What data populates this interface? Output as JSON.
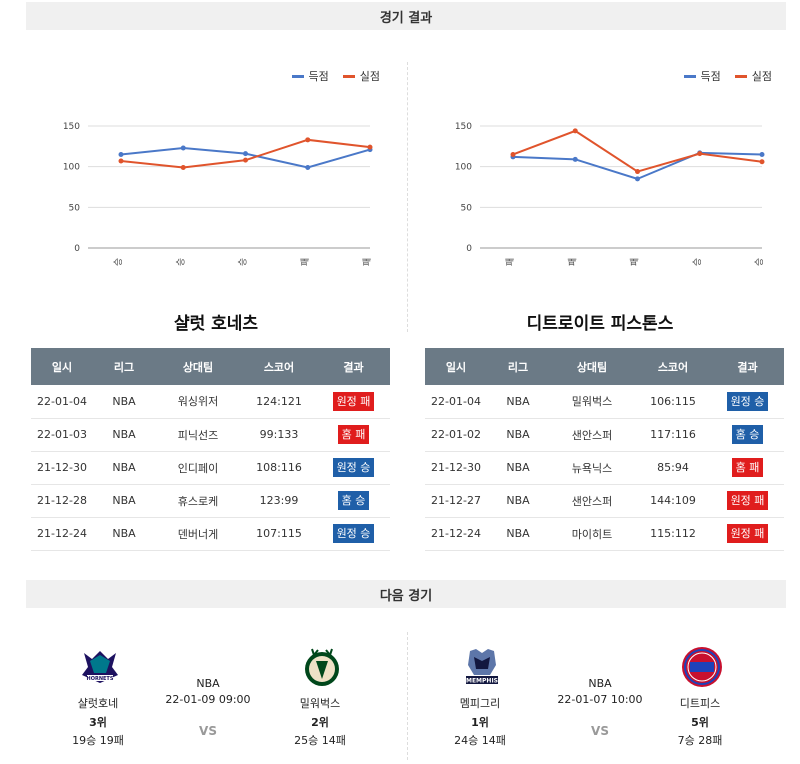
{
  "section_results": "경기 결과",
  "section_next": "다음 경기",
  "colors": {
    "scored": "#4a78c8",
    "conceded": "#e0542c",
    "win": "#1f5fa8",
    "loss": "#e01d1d"
  },
  "legend": {
    "scored": "득점",
    "conceded": "실점"
  },
  "table_headers": [
    "일시",
    "리그",
    "상대팀",
    "스코어",
    "결과"
  ],
  "teams": [
    {
      "name": "샬럿 호네츠",
      "results": [
        {
          "date": "22-01-04",
          "league": "NBA",
          "opponent": "워싱위저",
          "score": "124:121",
          "result": "원정 패",
          "win": false
        },
        {
          "date": "22-01-03",
          "league": "NBA",
          "opponent": "피닉선즈",
          "score": "99:133",
          "result": "홈 패",
          "win": false
        },
        {
          "date": "21-12-30",
          "league": "NBA",
          "opponent": "인디페이",
          "score": "108:116",
          "result": "원정 승",
          "win": true
        },
        {
          "date": "21-12-28",
          "league": "NBA",
          "opponent": "휴스로케",
          "score": "123:99",
          "result": "홈 승",
          "win": true
        },
        {
          "date": "21-12-24",
          "league": "NBA",
          "opponent": "덴버너게",
          "score": "107:115",
          "result": "원정 승",
          "win": true
        }
      ]
    },
    {
      "name": "디트로이트 피스톤스",
      "results": [
        {
          "date": "22-01-04",
          "league": "NBA",
          "opponent": "밀워벅스",
          "score": "106:115",
          "result": "원정 승",
          "win": true
        },
        {
          "date": "22-01-02",
          "league": "NBA",
          "opponent": "샌안스퍼",
          "score": "117:116",
          "result": "홈 승",
          "win": true
        },
        {
          "date": "21-12-30",
          "league": "NBA",
          "opponent": "뉴욕닉스",
          "score": "85:94",
          "result": "홈 패",
          "win": false
        },
        {
          "date": "21-12-27",
          "league": "NBA",
          "opponent": "샌안스퍼",
          "score": "144:109",
          "result": "원정 패",
          "win": false
        },
        {
          "date": "21-12-24",
          "league": "NBA",
          "opponent": "마이히트",
          "score": "115:112",
          "result": "원정 패",
          "win": false
        }
      ]
    }
  ],
  "chart_data": [
    {
      "type": "line",
      "categories": [
        "승",
        "승",
        "승",
        "패",
        "패"
      ],
      "ylim": [
        0,
        150
      ],
      "yticks": [
        0,
        50,
        100,
        150
      ],
      "grid": true,
      "legend_position": "top-right",
      "series": [
        {
          "name": "득점",
          "values": [
            115,
            123,
            116,
            99,
            121
          ]
        },
        {
          "name": "실점",
          "values": [
            107,
            99,
            108,
            133,
            124
          ]
        }
      ]
    },
    {
      "type": "line",
      "categories": [
        "패",
        "패",
        "패",
        "승",
        "승"
      ],
      "ylim": [
        0,
        150
      ],
      "yticks": [
        0,
        50,
        100,
        150
      ],
      "grid": true,
      "legend_position": "top-right",
      "series": [
        {
          "name": "득점",
          "values": [
            112,
            109,
            85,
            117,
            115
          ]
        },
        {
          "name": "실점",
          "values": [
            115,
            144,
            94,
            116,
            106
          ]
        }
      ]
    }
  ],
  "next_games": [
    {
      "league": "NBA",
      "datetime": "22-01-09 09:00",
      "vs": "VS",
      "home": {
        "name": "샬럿호네",
        "rank": "3위",
        "record": "19승 19패",
        "logo": "hornets-logo"
      },
      "away": {
        "name": "밀워벅스",
        "rank": "2위",
        "record": "25승 14패",
        "logo": "bucks-logo"
      }
    },
    {
      "league": "NBA",
      "datetime": "22-01-07 10:00",
      "vs": "VS",
      "home": {
        "name": "멤피그리",
        "rank": "1위",
        "record": "24승 14패",
        "logo": "grizzlies-logo"
      },
      "away": {
        "name": "디트피스",
        "rank": "5위",
        "record": "7승 28패",
        "logo": "pistons-logo"
      }
    }
  ]
}
